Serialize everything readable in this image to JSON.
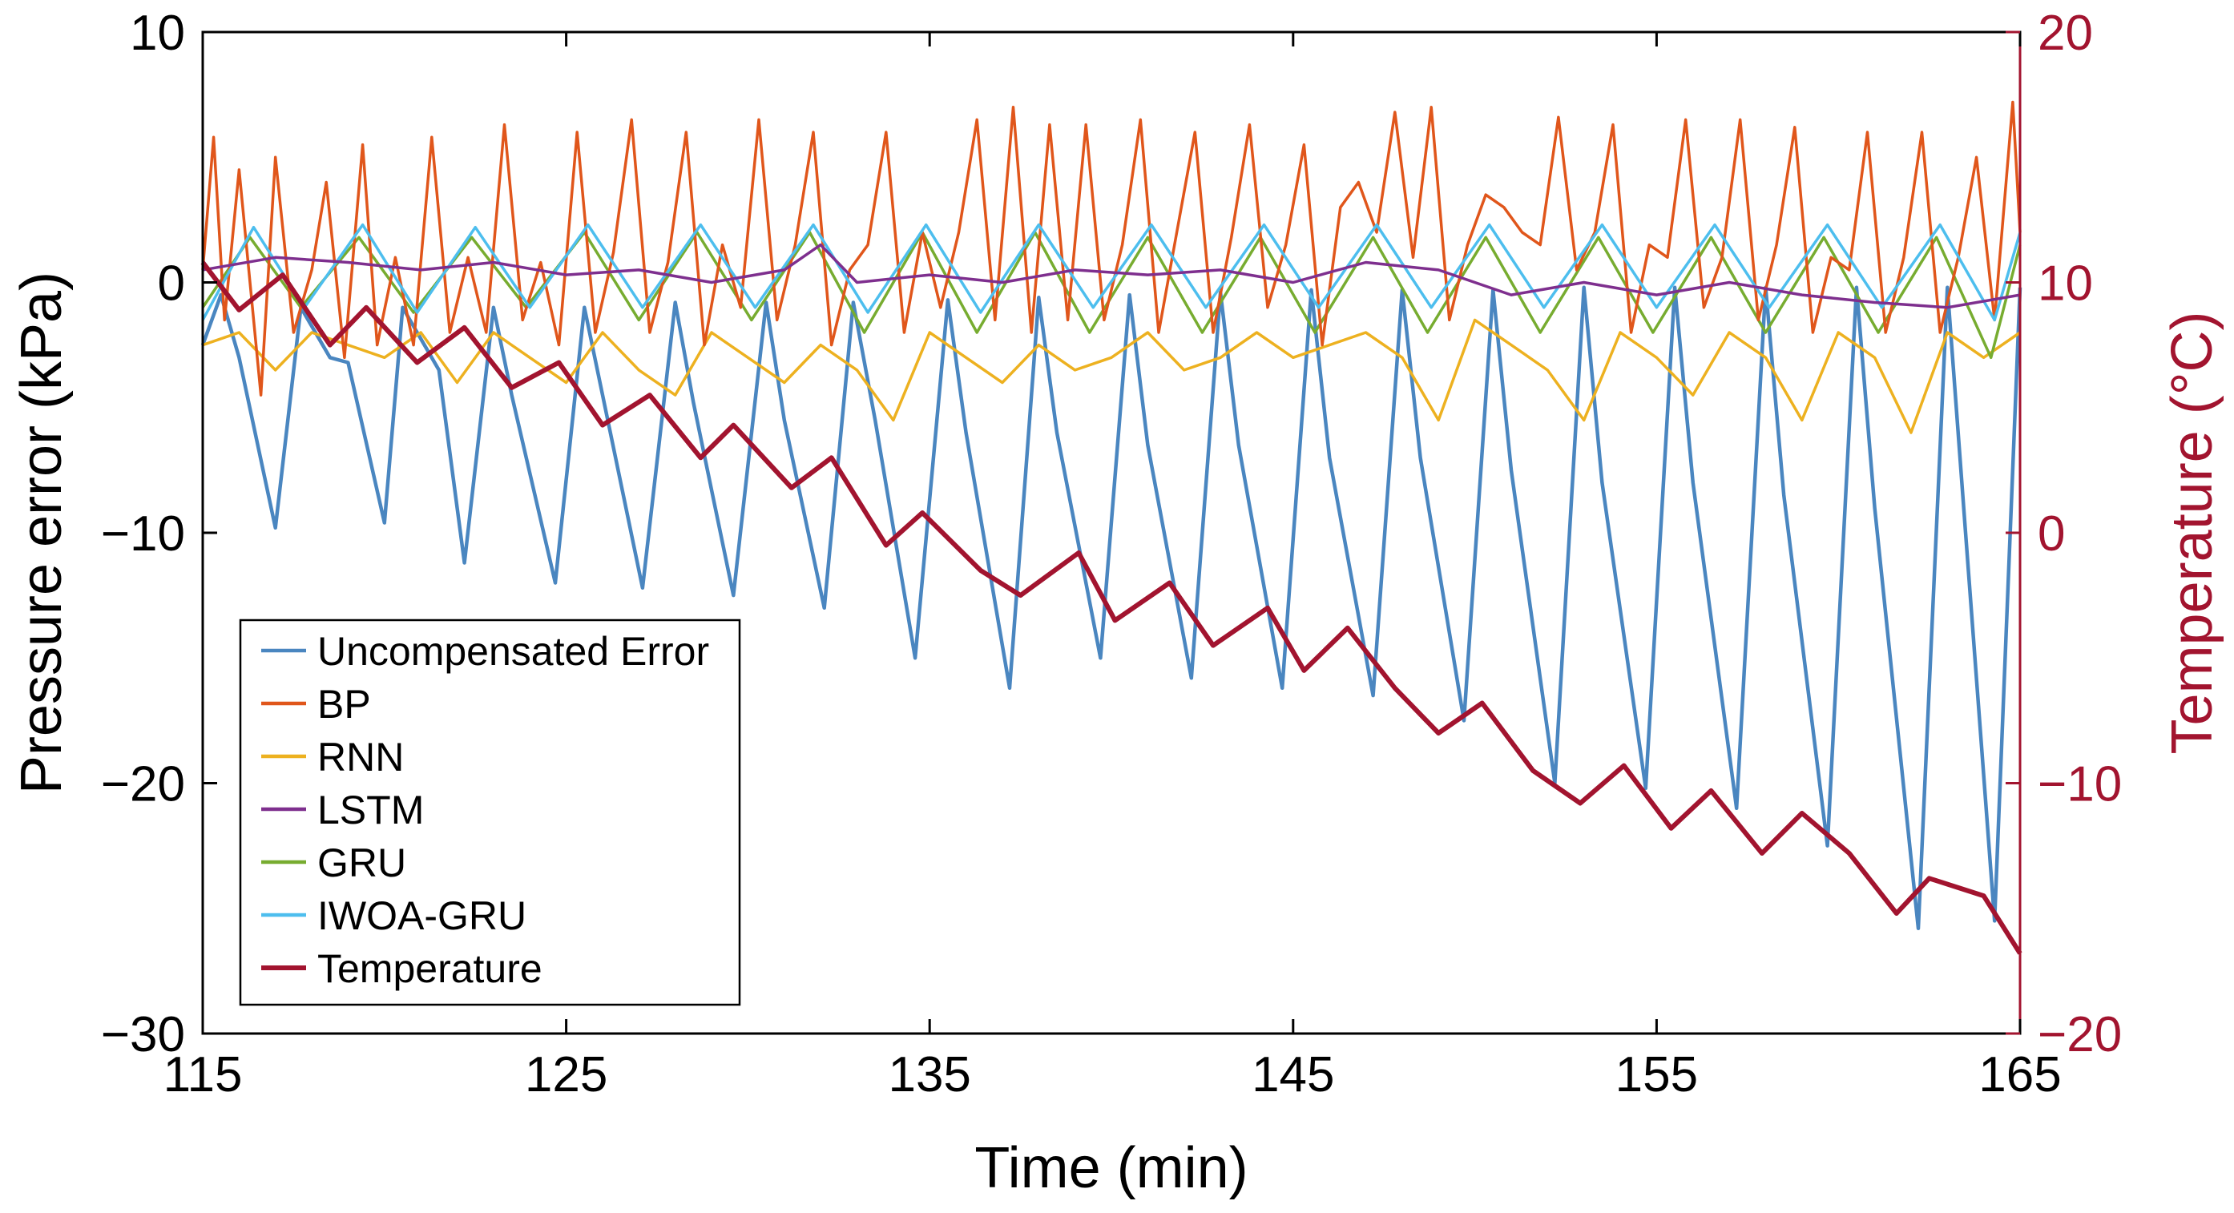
{
  "chart_data": {
    "type": "line",
    "xlabel": "Time (min)",
    "ylabel": "Pressure error (kPa)",
    "y2label": "Temperature (°C)",
    "xlim": [
      115,
      165
    ],
    "ylim": [
      -30,
      10
    ],
    "y2lim": [
      -20,
      20
    ],
    "xticks": [
      "115",
      "125",
      "135",
      "145",
      "155",
      "165"
    ],
    "yticks": [
      "10",
      "0",
      "−10",
      "−20",
      "−30"
    ],
    "y2ticks": [
      "20",
      "10",
      "0",
      "−10",
      "−20"
    ],
    "grid": false,
    "legend_position": "bottom-left",
    "colors": {
      "uncompensated": "#4a86c0",
      "bp": "#e0561b",
      "rnn": "#edb120",
      "lstm": "#7e2f8e",
      "gru": "#77ac30",
      "iwoa_gru": "#4dbeee",
      "temperature": "#a2142f",
      "right_axis": "#a2142f"
    },
    "series": [
      {
        "name": "Uncompensated Error",
        "axis": "left",
        "x": [
          115,
          115.5,
          116.0,
          117.0,
          117.7,
          118.5,
          119.0,
          120.0,
          120.5,
          121.5,
          122.2,
          123.0,
          123.5,
          124.7,
          125.5,
          126.0,
          127.1,
          128.0,
          128.5,
          129.6,
          130.5,
          131.0,
          132.1,
          132.9,
          133.5,
          134.6,
          135.5,
          136.0,
          137.2,
          138.0,
          138.5,
          139.7,
          140.5,
          141.0,
          142.2,
          143.0,
          143.5,
          144.7,
          145.5,
          146.0,
          147.2,
          148.0,
          148.5,
          149.7,
          150.5,
          151.0,
          152.2,
          153.0,
          153.5,
          154.7,
          155.5,
          156.0,
          157.2,
          158.0,
          158.5,
          159.7,
          160.5,
          161.0,
          162.2,
          163.0,
          163.5,
          164.3,
          165.0
        ],
        "values": [
          -2.5,
          -0.5,
          -3.0,
          -9.8,
          -1.0,
          -3.0,
          -3.2,
          -9.6,
          -1.0,
          -3.5,
          -11.2,
          -1.0,
          -4.5,
          -12.0,
          -1.0,
          -4.5,
          -12.2,
          -0.8,
          -4.8,
          -12.5,
          -0.8,
          -5.5,
          -13.0,
          -0.8,
          -5.5,
          -15.0,
          -0.7,
          -6.0,
          -16.2,
          -0.6,
          -6.0,
          -15.0,
          -0.5,
          -6.5,
          -15.8,
          -0.4,
          -6.5,
          -16.2,
          -0.3,
          -7.0,
          -16.5,
          -0.3,
          -7.0,
          -17.5,
          -0.3,
          -7.5,
          -20.0,
          -0.2,
          -8.0,
          -20.2,
          -0.2,
          -8.0,
          -21.0,
          -0.2,
          -8.5,
          -22.5,
          -0.2,
          -9.0,
          -25.8,
          -0.2,
          -10.0,
          -25.5,
          -0.2
        ]
      },
      {
        "name": "BP",
        "axis": "left",
        "x": [
          115,
          115.3,
          115.6,
          116.0,
          116.6,
          117.0,
          117.5,
          118.0,
          118.4,
          118.9,
          119.4,
          119.8,
          120.3,
          120.8,
          121.3,
          121.8,
          122.3,
          122.8,
          123.3,
          123.8,
          124.3,
          124.8,
          125.3,
          125.8,
          126.3,
          126.8,
          127.3,
          127.8,
          128.3,
          128.8,
          129.3,
          129.8,
          130.3,
          130.8,
          131.3,
          131.8,
          132.3,
          132.8,
          133.3,
          133.8,
          134.3,
          134.8,
          135.3,
          135.8,
          136.3,
          136.8,
          137.3,
          137.8,
          138.3,
          138.8,
          139.3,
          139.8,
          140.3,
          140.8,
          141.3,
          141.8,
          142.3,
          142.8,
          143.3,
          143.8,
          144.3,
          144.8,
          145.3,
          145.8,
          146.3,
          146.8,
          147.3,
          147.8,
          148.3,
          148.8,
          149.3,
          149.8,
          150.3,
          150.8,
          151.3,
          151.8,
          152.3,
          152.8,
          153.3,
          153.8,
          154.3,
          154.8,
          155.3,
          155.8,
          156.3,
          156.8,
          157.3,
          157.8,
          158.3,
          158.8,
          159.3,
          159.8,
          160.3,
          160.8,
          161.3,
          161.8,
          162.3,
          162.8,
          163.3,
          163.8,
          164.3,
          164.8,
          165.0
        ],
        "values": [
          0.5,
          5.8,
          -1.5,
          4.5,
          -4.5,
          5.0,
          -2.0,
          0.5,
          4.0,
          -3.0,
          5.5,
          -2.5,
          1.0,
          -2.5,
          5.8,
          -2.0,
          1.0,
          -2.0,
          6.3,
          -1.5,
          0.8,
          -2.5,
          6.0,
          -2.0,
          1.2,
          6.5,
          -2.0,
          0.8,
          6.0,
          -2.5,
          1.5,
          -1.0,
          6.5,
          -1.5,
          1.5,
          6.0,
          -2.5,
          0.5,
          1.5,
          6.0,
          -2.0,
          2.0,
          -1.0,
          2.0,
          6.5,
          -1.5,
          7.0,
          -2.0,
          6.3,
          -1.5,
          6.3,
          -1.5,
          1.5,
          6.5,
          -2.0,
          2.0,
          6.0,
          -2.0,
          1.8,
          6.3,
          -1.0,
          1.5,
          5.5,
          -2.5,
          3.0,
          4.0,
          2.0,
          6.8,
          1.0,
          7.0,
          -1.5,
          1.5,
          3.5,
          3.0,
          2.0,
          1.5,
          6.6,
          0.5,
          2.0,
          6.3,
          -2.0,
          1.5,
          1.0,
          6.5,
          -1.0,
          1.0,
          6.5,
          -1.5,
          1.5,
          6.2,
          -2.0,
          1.0,
          0.5,
          6.0,
          -2.0,
          1.0,
          6.0,
          -2.0,
          1.0,
          5.0,
          -1.5,
          7.2,
          2.0
        ]
      },
      {
        "name": "RNN",
        "axis": "left",
        "x": [
          115,
          116.0,
          117.0,
          118.0,
          119.0,
          120.0,
          121.0,
          122.0,
          123.0,
          124.0,
          125.0,
          126.0,
          127.0,
          128.0,
          129.0,
          130.0,
          131.0,
          132.0,
          133.0,
          134.0,
          135.0,
          136.0,
          137.0,
          138.0,
          139.0,
          140.0,
          141.0,
          142.0,
          143.0,
          144.0,
          145.0,
          146.0,
          147.0,
          148.0,
          149.0,
          150.0,
          151.0,
          152.0,
          153.0,
          154.0,
          155.0,
          156.0,
          157.0,
          158.0,
          159.0,
          160.0,
          161.0,
          162.0,
          163.0,
          164.0,
          165.0
        ],
        "values": [
          -2.5,
          -2.0,
          -3.5,
          -2.0,
          -2.5,
          -3.0,
          -2.0,
          -4.0,
          -2.0,
          -3.0,
          -4.0,
          -2.0,
          -3.5,
          -4.5,
          -2.0,
          -3.0,
          -4.0,
          -2.5,
          -3.5,
          -5.5,
          -2.0,
          -3.0,
          -4.0,
          -2.5,
          -3.5,
          -3.0,
          -2.0,
          -3.5,
          -3.0,
          -2.0,
          -3.0,
          -2.5,
          -2.0,
          -3.0,
          -5.5,
          -1.5,
          -2.5,
          -3.5,
          -5.5,
          -2.0,
          -3.0,
          -4.5,
          -2.0,
          -3.0,
          -5.5,
          -2.0,
          -3.0,
          -6.0,
          -2.0,
          -3.0,
          -2.0
        ]
      },
      {
        "name": "LSTM",
        "axis": "left",
        "x": [
          115,
          117.0,
          119.0,
          121.0,
          123.0,
          125.0,
          127.0,
          129.0,
          131.0,
          132.0,
          133.0,
          135.0,
          137.0,
          139.0,
          141.0,
          143.0,
          145.0,
          147.0,
          149.0,
          151.0,
          153.0,
          155.0,
          157.0,
          159.0,
          161.0,
          163.0,
          165.0
        ],
        "values": [
          0.5,
          1.0,
          0.8,
          0.5,
          0.8,
          0.3,
          0.5,
          0.0,
          0.5,
          1.5,
          0.0,
          0.3,
          0.0,
          0.5,
          0.3,
          0.5,
          0.0,
          0.8,
          0.5,
          -0.5,
          0.0,
          -0.5,
          0.0,
          -0.5,
          -0.8,
          -1.0,
          -0.5
        ]
      },
      {
        "name": "GRU",
        "axis": "left",
        "x": [
          115,
          116.3,
          117.7,
          119.3,
          120.8,
          122.4,
          123.9,
          125.5,
          127.0,
          128.6,
          130.1,
          131.7,
          133.2,
          134.8,
          136.3,
          137.9,
          139.4,
          141.0,
          142.5,
          144.1,
          145.6,
          147.2,
          148.7,
          150.3,
          151.8,
          153.4,
          154.9,
          156.5,
          158.0,
          159.6,
          161.1,
          162.7,
          164.2,
          165.0
        ],
        "values": [
          -1.0,
          1.8,
          -1.0,
          1.8,
          -1.2,
          1.8,
          -1.0,
          2.0,
          -1.5,
          2.0,
          -1.5,
          2.0,
          -2.0,
          2.0,
          -2.0,
          2.0,
          -2.0,
          1.8,
          -2.0,
          1.8,
          -2.0,
          1.8,
          -2.0,
          1.8,
          -2.0,
          1.8,
          -2.0,
          1.8,
          -2.0,
          1.8,
          -2.0,
          1.8,
          -3.0,
          1.5
        ]
      },
      {
        "name": "IWOA-GRU",
        "axis": "left",
        "x": [
          115,
          116.4,
          117.8,
          119.4,
          120.9,
          122.5,
          124.0,
          125.6,
          127.1,
          128.7,
          130.2,
          131.8,
          133.3,
          134.9,
          136.4,
          138.0,
          139.5,
          141.1,
          142.6,
          144.2,
          145.7,
          147.3,
          148.8,
          150.4,
          151.9,
          153.5,
          155.0,
          156.6,
          158.1,
          159.7,
          161.2,
          162.8,
          164.3,
          165.0
        ],
        "values": [
          -1.5,
          2.2,
          -1.0,
          2.3,
          -1.2,
          2.2,
          -1.0,
          2.3,
          -1.0,
          2.3,
          -1.0,
          2.3,
          -1.2,
          2.3,
          -1.2,
          2.3,
          -1.0,
          2.3,
          -1.0,
          2.3,
          -1.0,
          2.3,
          -1.0,
          2.3,
          -1.0,
          2.3,
          -1.0,
          2.3,
          -1.0,
          2.3,
          -1.0,
          2.3,
          -1.5,
          2.0
        ]
      },
      {
        "name": "Temperature",
        "axis": "right",
        "x": [
          115,
          116.0,
          117.2,
          118.5,
          119.5,
          120.9,
          122.2,
          123.5,
          124.8,
          126.0,
          127.3,
          128.7,
          129.6,
          131.2,
          132.3,
          133.8,
          134.8,
          136.4,
          137.5,
          139.1,
          140.1,
          141.6,
          142.8,
          144.3,
          145.3,
          146.5,
          147.8,
          149.0,
          150.2,
          151.6,
          152.9,
          154.1,
          155.4,
          156.5,
          157.9,
          159.0,
          160.3,
          161.6,
          162.5,
          164.0,
          165.0
        ],
        "values": [
          10.8,
          8.9,
          10.3,
          7.5,
          9.0,
          6.8,
          8.2,
          5.8,
          6.8,
          4.3,
          5.5,
          3.0,
          4.3,
          1.8,
          3.0,
          -0.5,
          0.8,
          -1.5,
          -2.5,
          -0.8,
          -3.5,
          -2.0,
          -4.5,
          -3.0,
          -5.5,
          -3.8,
          -6.2,
          -8.0,
          -6.8,
          -9.5,
          -10.8,
          -9.3,
          -11.8,
          -10.3,
          -12.8,
          -11.2,
          -12.8,
          -15.2,
          -13.8,
          -14.5,
          -16.8
        ]
      }
    ]
  }
}
